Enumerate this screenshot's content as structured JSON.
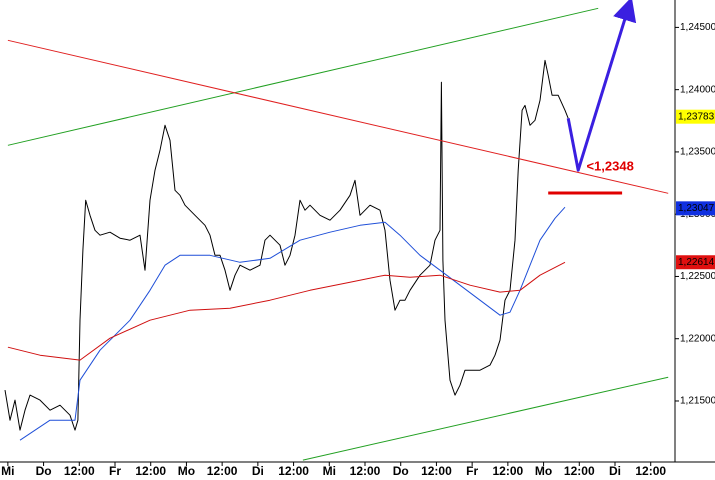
{
  "chart_data": {
    "type": "line",
    "categories": [
      "Mi",
      "Do",
      "12:00",
      "Fr",
      "12:00",
      "Mo",
      "12:00",
      "Di",
      "12:00",
      "Mi",
      "12:00",
      "Do",
      "12:00",
      "Fr",
      "12:00",
      "Mo",
      "12:00",
      "Di",
      "12:00"
    ],
    "xlim": [
      -0.22,
      18.68
    ],
    "ylim": [
      1.2101,
      1.2472
    ],
    "yticks": [
      {
        "value": 1.215,
        "label": "1,21500"
      },
      {
        "value": 1.22,
        "label": "1,22000"
      },
      {
        "value": 1.225,
        "label": "1,22500"
      },
      {
        "value": 1.23,
        "label": "1,23000"
      },
      {
        "value": 1.235,
        "label": "1,23500"
      },
      {
        "value": 1.24,
        "label": "1,24000"
      },
      {
        "value": 1.245,
        "label": "1,24500"
      }
    ],
    "series": [
      {
        "color": "#000000",
        "x": [
          -0.08,
          0.06,
          0.2,
          0.34,
          0.48,
          0.62,
          0.9,
          1.18,
          1.46,
          1.74,
          1.88,
          1.96,
          2.02,
          2.1,
          2.18,
          2.3,
          2.44,
          2.58,
          2.86,
          3.14,
          3.42,
          3.7,
          3.84,
          3.98,
          4.12,
          4.26,
          4.4,
          4.54,
          4.68,
          4.82,
          4.96,
          5.24,
          5.52,
          5.66,
          5.8,
          5.94,
          6.08,
          6.22,
          6.36,
          6.5,
          6.78,
          7.06,
          7.2,
          7.34,
          7.62,
          7.76,
          7.9,
          8.04,
          8.18,
          8.32,
          8.46,
          8.74,
          9.02,
          9.3,
          9.58,
          9.72,
          9.86,
          10.14,
          10.42,
          10.56,
          10.7,
          10.84,
          10.98,
          11.12,
          11.26,
          11.54,
          11.82,
          11.96,
          12.1,
          12.14,
          12.18,
          12.24,
          12.38,
          12.52,
          12.66,
          12.8,
          12.94,
          13.22,
          13.5,
          13.64,
          13.78,
          13.92,
          14.06,
          14.2,
          14.29,
          14.4,
          14.48,
          14.62,
          14.76,
          14.9,
          15.04,
          15.13,
          15.24,
          15.41,
          15.6,
          15.69
        ],
        "values": [
          1.21587,
          1.21346,
          1.21507,
          1.21266,
          1.21426,
          1.21547,
          1.21507,
          1.21426,
          1.21466,
          1.21386,
          1.21266,
          1.21346,
          1.22149,
          1.22711,
          1.23112,
          1.22991,
          1.22871,
          1.22831,
          1.22855,
          1.22807,
          1.22791,
          1.22831,
          1.2255,
          1.23112,
          1.23353,
          1.23513,
          1.23714,
          1.23593,
          1.23192,
          1.23152,
          1.23072,
          1.22991,
          1.22911,
          1.22831,
          1.2267,
          1.2267,
          1.2255,
          1.22389,
          1.2251,
          1.2259,
          1.2255,
          1.2259,
          1.22791,
          1.22831,
          1.22751,
          1.2259,
          1.2267,
          1.22831,
          1.23112,
          1.23032,
          1.23072,
          1.22991,
          1.22952,
          1.23032,
          1.23152,
          1.23272,
          1.22991,
          1.23072,
          1.23032,
          1.22871,
          1.2247,
          1.22229,
          1.22309,
          1.22309,
          1.22389,
          1.2251,
          1.2259,
          1.22791,
          1.22871,
          1.24059,
          1.2263,
          1.22149,
          1.21667,
          1.21547,
          1.21627,
          1.21747,
          1.21747,
          1.21747,
          1.21788,
          1.21868,
          1.21988,
          1.22309,
          1.22389,
          1.22791,
          1.23353,
          1.23834,
          1.23874,
          1.23714,
          1.23754,
          1.23914,
          1.24235,
          1.24115,
          1.23955,
          1.23955,
          1.23834,
          1.2377
        ]
      },
      {
        "color": "#1f4fd8",
        "x": [
          0.34,
          1.18,
          1.88,
          2.02,
          2.58,
          3.42,
          3.98,
          4.4,
          4.82,
          5.66,
          6.5,
          7.34,
          8.18,
          9.02,
          9.86,
          10.56,
          10.98,
          11.54,
          12.1,
          12.66,
          13.22,
          13.78,
          14.06,
          14.34,
          14.9,
          15.32,
          15.6
        ],
        "values": [
          1.21185,
          1.21346,
          1.21346,
          1.21667,
          1.21908,
          1.22149,
          1.22389,
          1.2259,
          1.2267,
          1.2267,
          1.22614,
          1.22646,
          1.22791,
          1.22855,
          1.22911,
          1.22935,
          1.22831,
          1.2267,
          1.2255,
          1.2243,
          1.22309,
          1.22189,
          1.22213,
          1.22389,
          1.22791,
          1.22967,
          1.23056
        ]
      },
      {
        "color": "#d01010",
        "x": [
          0,
          0.9,
          2.02,
          2.86,
          3.98,
          5.1,
          6.22,
          7.34,
          8.46,
          9.58,
          10.56,
          11.26,
          12.1,
          12.94,
          13.78,
          14.34,
          14.9,
          15.6
        ],
        "values": [
          1.21932,
          1.21868,
          1.21828,
          1.22004,
          1.22149,
          1.22229,
          1.22245,
          1.22309,
          1.22389,
          1.22454,
          1.2251,
          1.22494,
          1.2251,
          1.2243,
          1.22374,
          1.22389,
          1.2251,
          1.22614
        ]
      },
      {
        "color": "#22a022",
        "x": [
          0,
          16.53
        ],
        "values": [
          1.23553,
          1.24653
        ]
      },
      {
        "color": "#22a022",
        "x": [
          8.26,
          18.49
        ],
        "values": [
          1.21025,
          1.21691
        ]
      },
      {
        "color": "#e02020",
        "x": [
          0,
          18.49
        ],
        "values": [
          1.24396,
          1.23168
        ]
      },
      {
        "color": "#3a1fe0",
        "x": [
          15.69,
          15.97,
          17.37
        ],
        "values": [
          1.2377,
          1.23353,
          1.24653
        ],
        "arrow": true
      },
      {
        "color": "#e00000",
        "x": [
          15.13,
          17.2
        ],
        "values": [
          1.2317,
          1.2317
        ],
        "width": 3
      }
    ],
    "annotation": {
      "text": "<1,2348",
      "color": "#e00000"
    },
    "markers": [
      {
        "value": 1.23783,
        "label": "1,23783",
        "color": "#ffff00",
        "text_color": "#000000"
      },
      {
        "value": 1.23047,
        "label": "1,23047",
        "color": "#1030e0",
        "text_color": "#ffffff"
      },
      {
        "value": 1.22614,
        "label": "1,22614",
        "color": "#e01010",
        "text_color": "#ffffff"
      }
    ]
  }
}
